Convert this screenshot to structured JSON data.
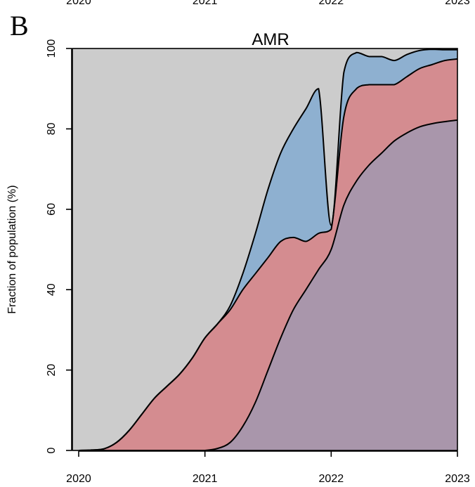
{
  "panel_label": "B",
  "top_clipped_tick_labels": [
    "2020",
    "2021",
    "2022",
    "2023"
  ],
  "chart_data": {
    "type": "area",
    "stacked": true,
    "title": "AMR",
    "xlabel": "",
    "ylabel": "Fraction of population (%)",
    "xlim": [
      2019.95,
      2023.0
    ],
    "ylim": [
      0,
      100
    ],
    "xticks": [
      2020,
      2021,
      2022,
      2023
    ],
    "xtick_labels": [
      "2020",
      "2021",
      "2022",
      "2023"
    ],
    "yticks": [
      0,
      20,
      40,
      60,
      80,
      100
    ],
    "ytick_labels": [
      "0",
      "20",
      "40",
      "60",
      "80",
      "100"
    ],
    "background_color": "#cccccc",
    "x": [
      2020.0,
      2020.1,
      2020.2,
      2020.3,
      2020.4,
      2020.5,
      2020.6,
      2020.7,
      2020.8,
      2020.9,
      2021.0,
      2021.1,
      2021.2,
      2021.3,
      2021.4,
      2021.5,
      2021.6,
      2021.7,
      2021.8,
      2021.9,
      2022.0,
      2022.1,
      2022.2,
      2022.3,
      2022.4,
      2022.5,
      2022.6,
      2022.7,
      2022.8,
      2022.9,
      2023.0
    ],
    "series": [
      {
        "color": "#a996ab",
        "values": [
          0,
          0,
          0,
          0,
          0,
          0,
          0,
          0,
          0,
          0,
          0,
          0.5,
          2,
          6,
          12,
          20,
          28,
          35,
          40,
          45,
          50,
          61,
          67,
          71,
          74,
          77,
          79,
          80.5,
          81.3,
          81.8,
          82.2
        ]
      },
      {
        "color": "#d48c90",
        "values": [
          0,
          0.1,
          0.4,
          2,
          5,
          9,
          13,
          16,
          19,
          23,
          28,
          31,
          33,
          34,
          32,
          28,
          24,
          18,
          12,
          9,
          5,
          22,
          23,
          20,
          17,
          14,
          14,
          14.5,
          14.7,
          15.2,
          15.2
        ]
      },
      {
        "color": "#8eb0d0",
        "values": [
          0,
          0,
          0,
          0,
          0,
          0,
          0,
          0,
          0,
          0,
          0,
          0,
          1,
          4,
          10,
          17,
          22,
          27,
          33,
          36,
          1,
          11,
          9,
          7,
          7,
          6,
          5.5,
          4.5,
          3.8,
          2.7,
          2.3
        ]
      }
    ]
  }
}
